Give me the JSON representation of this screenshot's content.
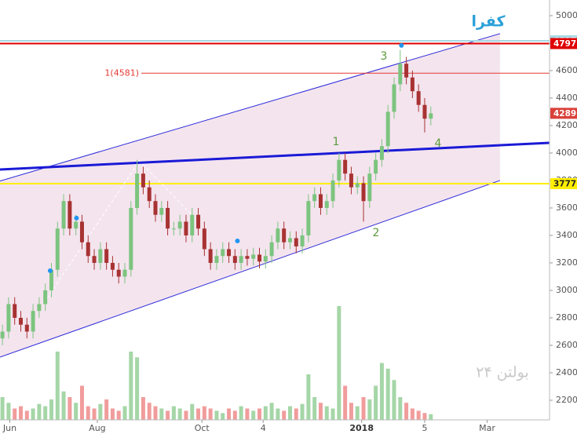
{
  "chart_data": {
    "type": "candlestick",
    "title": "کفرا",
    "watermark": "بولتن ۲۴",
    "up_color": "#7cc47f",
    "down_color": "#a83232",
    "volume_up_color": "#a5d6a7",
    "volume_down_color": "#f19c9c",
    "open": [
      2650,
      2700,
      2900,
      2800,
      2750,
      2700,
      2850,
      2900,
      3000,
      3150,
      3450,
      3650,
      3450,
      3500,
      3350,
      3250,
      3200,
      3300,
      3200,
      3150,
      3100,
      3150,
      3600,
      3850,
      3750,
      3650,
      3550,
      3600,
      3450,
      3450,
      3500,
      3400,
      3550,
      3450,
      3300,
      3200,
      3250,
      3300,
      3250,
      3200,
      3250,
      3230,
      3260,
      3210,
      3250,
      3350,
      3450,
      3350,
      3380,
      3320,
      3400,
      3650,
      3700,
      3600,
      3650,
      3800,
      3950,
      3850,
      3750,
      3780,
      3650,
      3850,
      3950,
      4050,
      4300,
      4500,
      4650,
      4550,
      4450,
      4350,
      4250
    ],
    "high": [
      2750,
      2950,
      2950,
      2850,
      2800,
      2900,
      2950,
      3050,
      3200,
      3500,
      3700,
      3700,
      3550,
      3550,
      3400,
      3300,
      3350,
      3350,
      3250,
      3200,
      3200,
      3650,
      3950,
      3900,
      3800,
      3700,
      3650,
      3650,
      3500,
      3550,
      3550,
      3600,
      3600,
      3500,
      3350,
      3300,
      3350,
      3350,
      3300,
      3300,
      3300,
      3310,
      3310,
      3300,
      3400,
      3500,
      3500,
      3430,
      3430,
      3450,
      3700,
      3750,
      3750,
      3700,
      3850,
      4000,
      4000,
      3900,
      3830,
      3830,
      3900,
      4000,
      4100,
      4350,
      4550,
      4750,
      4700,
      4600,
      4500,
      4400,
      4339
    ],
    "low": [
      2600,
      2650,
      2750,
      2700,
      2650,
      2650,
      2800,
      2850,
      2950,
      3100,
      3400,
      3400,
      3400,
      3300,
      3200,
      3150,
      3150,
      3150,
      3100,
      3050,
      3050,
      3100,
      3550,
      3700,
      3600,
      3500,
      3500,
      3400,
      3400,
      3400,
      3350,
      3350,
      3400,
      3250,
      3150,
      3150,
      3200,
      3200,
      3150,
      3150,
      3180,
      3180,
      3160,
      3160,
      3200,
      3300,
      3300,
      3300,
      3270,
      3270,
      3350,
      3600,
      3550,
      3550,
      3600,
      3750,
      3800,
      3700,
      3700,
      3500,
      3600,
      3800,
      3900,
      4000,
      4250,
      4450,
      4500,
      4400,
      4300,
      4150,
      4200
    ],
    "close": [
      2700,
      2900,
      2800,
      2750,
      2700,
      2850,
      2900,
      3000,
      3150,
      3450,
      3650,
      3450,
      3500,
      3350,
      3250,
      3200,
      3300,
      3200,
      3150,
      3100,
      3150,
      3600,
      3850,
      3750,
      3650,
      3550,
      3600,
      3450,
      3450,
      3500,
      3400,
      3550,
      3450,
      3300,
      3200,
      3250,
      3300,
      3250,
      3200,
      3250,
      3230,
      3260,
      3210,
      3250,
      3350,
      3450,
      3350,
      3380,
      3320,
      3400,
      3650,
      3700,
      3600,
      3650,
      3800,
      3950,
      3850,
      3750,
      3780,
      3650,
      3850,
      3950,
      4050,
      4300,
      4500,
      4650,
      4550,
      4450,
      4350,
      4250,
      4289
    ],
    "volume": [
      20,
      15,
      10,
      12,
      8,
      10,
      14,
      12,
      18,
      60,
      25,
      20,
      15,
      30,
      12,
      10,
      14,
      18,
      10,
      8,
      12,
      60,
      55,
      20,
      15,
      12,
      10,
      8,
      12,
      10,
      8,
      14,
      10,
      12,
      10,
      8,
      6,
      10,
      8,
      12,
      10,
      8,
      10,
      12,
      15,
      10,
      8,
      12,
      10,
      14,
      40,
      20,
      15,
      12,
      10,
      100,
      30,
      15,
      12,
      20,
      18,
      30,
      50,
      45,
      35,
      20,
      15,
      10,
      8,
      6,
      5
    ],
    "xlim": [
      -0.4,
      89.4
    ],
    "ylim": [
      2057,
      5114
    ],
    "yticks": [
      2200,
      2400,
      2600,
      2800,
      3000,
      3200,
      3400,
      3600,
      3800,
      4000,
      4200,
      4400,
      4600,
      4800,
      5000
    ],
    "xticks": [
      {
        "value": 1.2,
        "label": "Jun"
      },
      {
        "value": 15.5,
        "label": "Aug"
      },
      {
        "value": 32.6,
        "label": "Oct"
      },
      {
        "value": 42.6,
        "label": "4"
      },
      {
        "value": 58.7,
        "label": "2018"
      },
      {
        "value": 69,
        "label": "5"
      },
      {
        "value": 79.2,
        "label": "Mar"
      }
    ],
    "channel": {
      "color": "#f4e4ee",
      "upper": {
        "x": [
          -0.4,
          81.3
        ],
        "y": [
          3796,
          4869
        ]
      },
      "lower": {
        "x": [
          -0.4,
          81.3
        ],
        "y": [
          2514,
          3800
        ]
      },
      "line_color": "#2b2bd9"
    },
    "trend_line": {
      "x": [
        -0.4,
        89.4
      ],
      "y": [
        3880,
        4074
      ],
      "color": "#1a1ad6"
    },
    "dashed_line": {
      "x": [
        7.3,
        22.4,
        31.7
      ],
      "y": [
        2943,
        3943,
        3514
      ],
      "color": "#ffffff"
    },
    "level": {
      "value": 4581,
      "label": "1(4581)",
      "color": "#e53935"
    },
    "price_lines": [
      {
        "value": 4817,
        "color": "#a7d7e3",
        "line": true
      },
      {
        "value": 4797,
        "color": "#e00000",
        "line": true
      },
      {
        "value": 4289,
        "color": "#d9413a",
        "line": false
      },
      {
        "value": 3777,
        "color": "#ffee00",
        "line": true
      }
    ],
    "markers": {
      "x": [
        7.8,
        12.1,
        38.4,
        65.2
      ],
      "y": [
        3143,
        3526,
        3360,
        4783
      ],
      "color": "#2196f3"
    },
    "wave_labels": [
      "1",
      "2",
      "3",
      "4"
    ]
  }
}
